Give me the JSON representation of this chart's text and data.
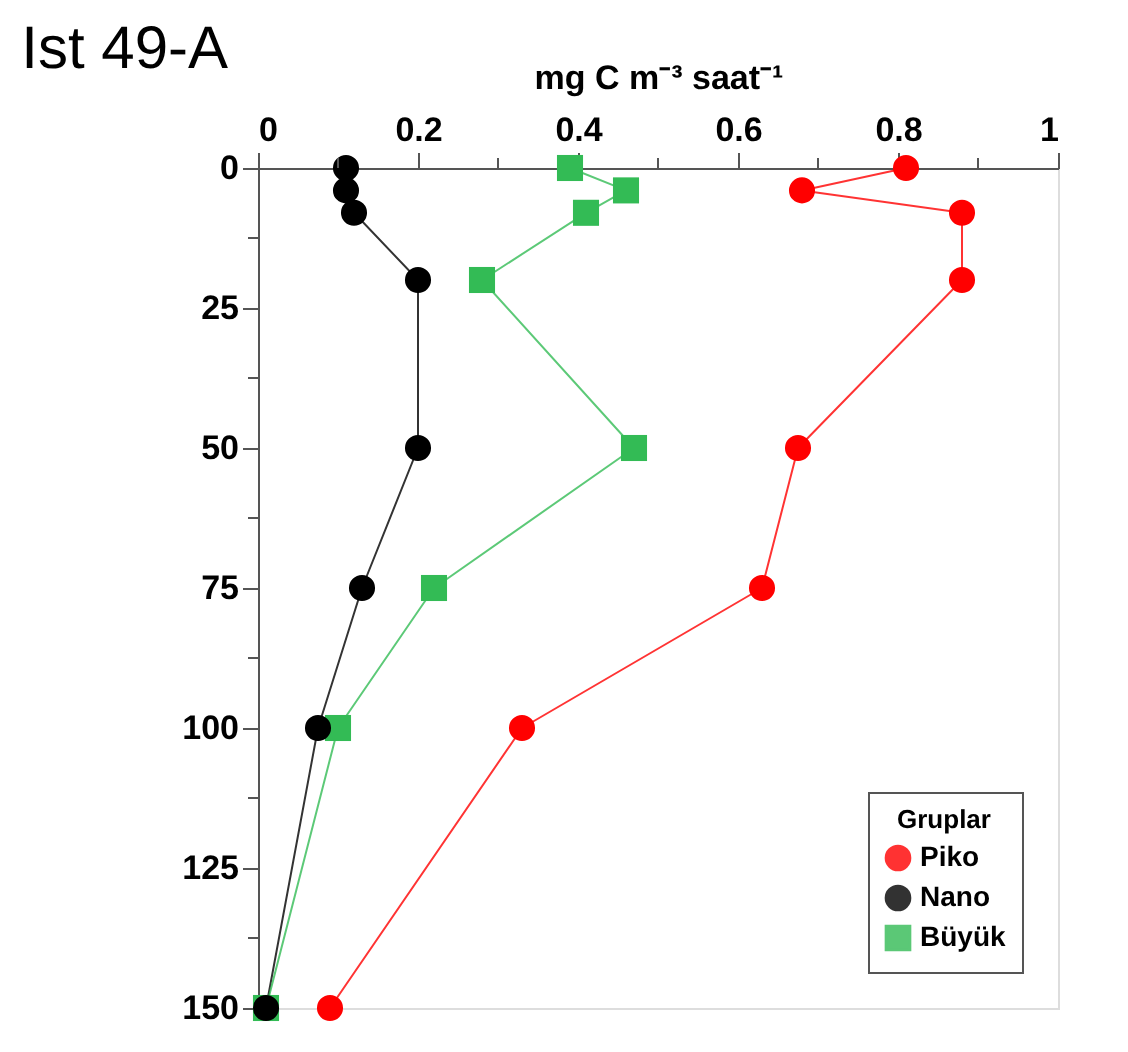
{
  "chart_data": {
    "type": "line",
    "title": "Ist 49-A",
    "xlabel": "mg C m⁻³ saat⁻¹",
    "legend_title": "Gruplar",
    "legend": "bottom right",
    "grid": false,
    "orientation": "horizontal",
    "x": [
      0,
      4,
      8,
      20,
      50,
      75,
      100,
      150
    ],
    "series": [
      {
        "name": "Piko",
        "color": "#ff0000",
        "marker": "circle",
        "values": [
          0.81,
          0.68,
          0.88,
          0.88,
          0.675,
          0.63,
          0.33,
          0.09
        ]
      },
      {
        "name": "Nano",
        "color": "#000000",
        "marker": "circle",
        "values": [
          0.11,
          0.11,
          0.12,
          0.2,
          0.2,
          0.13,
          0.075,
          0.01
        ]
      },
      {
        "name": "Büyük",
        "color": "#33bb55",
        "marker": "square",
        "values": [
          0.39,
          0.46,
          0.41,
          0.28,
          0.47,
          0.22,
          0.1,
          0.01
        ]
      }
    ],
    "xlim": [
      0,
      1
    ],
    "xticks": [
      0,
      {
        "value": 0.1,
        "label": null
      },
      0.2,
      {
        "value": 0.3,
        "label": null
      },
      0.4,
      {
        "value": 0.5,
        "label": null
      },
      0.6,
      {
        "value": 0.7,
        "label": null
      },
      0.8,
      {
        "value": 0.9,
        "label": null
      },
      1
    ],
    "ylim": [
      150,
      0
    ],
    "yticks": [
      0,
      {
        "value": 12.5,
        "label": null
      },
      25,
      {
        "value": 37.5,
        "label": null
      },
      50,
      {
        "value": 62.5,
        "label": null
      },
      75,
      {
        "value": 87.5,
        "label": null
      },
      100,
      {
        "value": 112.5,
        "label": null
      },
      125,
      {
        "value": 137.5,
        "label": null
      },
      150
    ]
  }
}
